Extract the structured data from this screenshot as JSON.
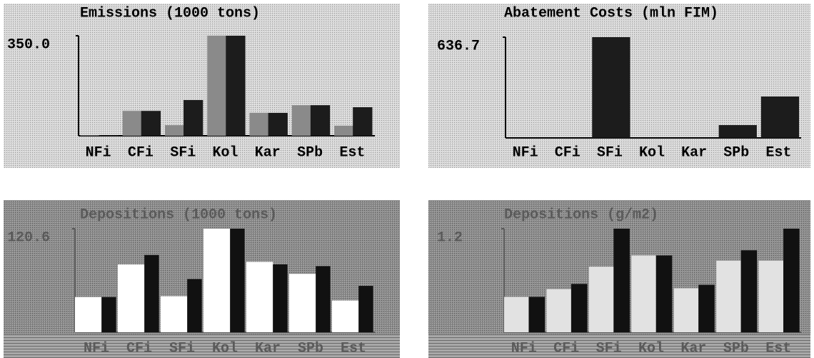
{
  "chart_data": [
    {
      "type": "bar",
      "title": "Emissions (1000 tons)",
      "categories": [
        "NFi",
        "CFi",
        "SFi",
        "Kol",
        "Kar",
        "SPb",
        "Est"
      ],
      "series": [
        {
          "color": "#8a8a8a",
          "values": [
            2,
            87,
            37,
            350,
            80,
            107,
            35
          ]
        },
        {
          "color": "#1c1c1c",
          "values": [
            2,
            87,
            125,
            350,
            80,
            107,
            100
          ]
        }
      ],
      "ylim": [
        0,
        350
      ],
      "yticks": [
        {
          "value": 350,
          "label": "350.0"
        }
      ]
    },
    {
      "type": "bar",
      "title": "Abatement Costs (mln FIM)",
      "categories": [
        "NFi",
        "CFi",
        "SFi",
        "Kol",
        "Kar",
        "SPb",
        "Est"
      ],
      "values": [
        0,
        0,
        636.7,
        0,
        0,
        81,
        262
      ],
      "color": "#1c1c1c",
      "ylim": [
        0,
        636.7
      ],
      "yticks": [
        636.7
      ]
    },
    {
      "type": "bar",
      "title": "Depositions (1000 tons)",
      "categories": [
        "NFi",
        "CFi",
        "SFi",
        "Kol",
        "Kar",
        "SPb",
        "Est"
      ],
      "series": [
        {
          "color": "#ffffff",
          "values": [
            41,
            79,
            42,
            120.6,
            82,
            68,
            37
          ]
        },
        {
          "color": "#111111",
          "values": [
            41,
            90,
            62,
            120.6,
            79,
            77,
            54
          ]
        }
      ],
      "ylim": [
        0,
        120.6
      ],
      "yticks": [
        120.6
      ]
    },
    {
      "type": "bar",
      "title": "Depositions (g/m2)",
      "categories": [
        "NFi",
        "CFi",
        "SFi",
        "Kol",
        "Kar",
        "SPb",
        "Est"
      ],
      "series": [
        {
          "color": "#e2e2e2",
          "values": [
            0.41,
            0.5,
            0.76,
            0.89,
            0.51,
            0.83,
            0.83
          ]
        },
        {
          "color": "#111111",
          "values": [
            0.41,
            0.56,
            1.2,
            0.89,
            0.55,
            0.95,
            1.2
          ]
        }
      ],
      "ylim": [
        0,
        1.2
      ],
      "yticks": [
        1.2
      ]
    }
  ]
}
